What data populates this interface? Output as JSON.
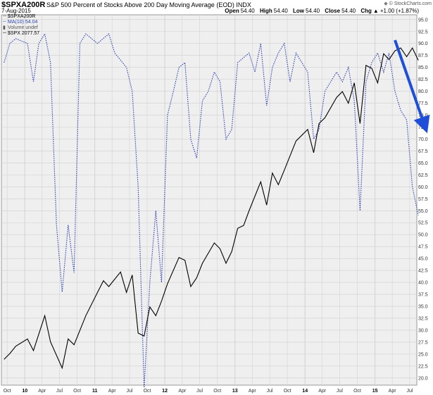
{
  "header": {
    "symbol": "$SPXA200R",
    "title": "S&P 500 Percent of Stocks Above 200 Day Moving Average (EOD) INDX",
    "date": "7-Aug-2015",
    "credit": "© StockCharts.com",
    "quote": {
      "open_label": "Open",
      "open_value": "54.40",
      "high_label": "High",
      "high_value": "54.40",
      "low_label": "Low",
      "low_value": "54.40",
      "close_label": "Close",
      "close_value": "54.40",
      "chg_label": "Chg",
      "chg_value": "+1.00 (+1.87%)",
      "chg_glyph": "▲"
    }
  },
  "legend": {
    "main": "$SPXA200R",
    "ma": "MA(10) 54.04",
    "volume": "Volume undef",
    "spx": "$SPX 2077.57"
  },
  "colors": {
    "ma_line": "#2a3fb0",
    "spx_line": "#000000",
    "arrow": "#1f4fd8",
    "grid": "#cfcfcf",
    "plot_bg": "#efefef"
  },
  "chart_data": {
    "type": "line",
    "x_range": [
      "2009-09-01",
      "2015-08-07"
    ],
    "ylim": [
      18.5,
      96
    ],
    "y_ticks": [
      "20.0",
      "22.5",
      "25.0",
      "27.5",
      "30.0",
      "32.5",
      "35.0",
      "37.5",
      "40.0",
      "42.5",
      "45.0",
      "47.5",
      "50.0",
      "52.5",
      "55.0",
      "57.5",
      "60.0",
      "62.5",
      "65.0",
      "67.5",
      "70.0",
      "72.5",
      "75.0",
      "77.5",
      "80.0",
      "82.5",
      "85.0",
      "87.5",
      "90.0",
      "92.5",
      "95.0"
    ],
    "x_ticks": [
      "Oct",
      "10",
      "Apr",
      "Jul",
      "Oct",
      "11",
      "Apr",
      "Jul",
      "Oct",
      "12",
      "Apr",
      "Jul",
      "Oct",
      "13",
      "Apr",
      "Jul",
      "Oct",
      "14",
      "Apr",
      "Jul",
      "Oct",
      "15",
      "Apr",
      "Jul"
    ],
    "year_ticks": [
      "10",
      "11",
      "12",
      "13",
      "14",
      "15"
    ],
    "grid": true,
    "series": [
      {
        "name": "MA(10) 54.04",
        "style": "dotted",
        "x": [
          "2009-09",
          "2009-10",
          "2009-11",
          "2010-01",
          "2010-02",
          "2010-03",
          "2010-04",
          "2010-05",
          "2010-06",
          "2010-07",
          "2010-08",
          "2010-09",
          "2010-10",
          "2010-11",
          "2011-01",
          "2011-03",
          "2011-04",
          "2011-06",
          "2011-07",
          "2011-08",
          "2011-09",
          "2011-10",
          "2011-11",
          "2011-12",
          "2012-01",
          "2012-02",
          "2012-03",
          "2012-04",
          "2012-05",
          "2012-06",
          "2012-07",
          "2012-08",
          "2012-09",
          "2012-10",
          "2012-11",
          "2012-12",
          "2013-01",
          "2013-03",
          "2013-04",
          "2013-05",
          "2013-06",
          "2013-07",
          "2013-08",
          "2013-09",
          "2013-10",
          "2013-11",
          "2014-01",
          "2014-02",
          "2014-03",
          "2014-04",
          "2014-06",
          "2014-07",
          "2014-08",
          "2014-09",
          "2014-10",
          "2014-11",
          "2014-12",
          "2015-01",
          "2015-02",
          "2015-03",
          "2015-04",
          "2015-05",
          "2015-06",
          "2015-07",
          "2015-08"
        ],
        "values": [
          86,
          90,
          91,
          90,
          82,
          90,
          92,
          86,
          52,
          38,
          52,
          42,
          90,
          92,
          90,
          92,
          88,
          85,
          80,
          60,
          18,
          40,
          55,
          40,
          75,
          80,
          85,
          86,
          70,
          66,
          78,
          80,
          84,
          82,
          70,
          72,
          86,
          88,
          84,
          90,
          77,
          85,
          88,
          90,
          82,
          88,
          84,
          70,
          72,
          80,
          84,
          82,
          85,
          78,
          55,
          82,
          86,
          88,
          84,
          88,
          80,
          76,
          74,
          60,
          54
        ]
      },
      {
        "name": "$SPX 2077.57",
        "style": "solid",
        "x": [
          "2009-09",
          "2009-10",
          "2009-11",
          "2010-01",
          "2010-02",
          "2010-04",
          "2010-05",
          "2010-07",
          "2010-08",
          "2010-09",
          "2010-11",
          "2011-01",
          "2011-02",
          "2011-03",
          "2011-05",
          "2011-06",
          "2011-07",
          "2011-08",
          "2011-09",
          "2011-10",
          "2011-11",
          "2011-12",
          "2012-01",
          "2012-03",
          "2012-04",
          "2012-05",
          "2012-06",
          "2012-07",
          "2012-09",
          "2012-10",
          "2012-11",
          "2012-12",
          "2013-01",
          "2013-02",
          "2013-03",
          "2013-05",
          "2013-06",
          "2013-07",
          "2013-08",
          "2013-09",
          "2013-11",
          "2014-01",
          "2014-02",
          "2014-03",
          "2014-04",
          "2014-06",
          "2014-07",
          "2014-08",
          "2014-09",
          "2014-10",
          "2014-11",
          "2014-12",
          "2015-01",
          "2015-02",
          "2015-03",
          "2015-04",
          "2015-05",
          "2015-06",
          "2015-07",
          "2015-08"
        ],
        "values": [
          1050,
          1070,
          1095,
          1120,
          1080,
          1200,
          1110,
          1020,
          1120,
          1100,
          1200,
          1280,
          1320,
          1300,
          1350,
          1280,
          1340,
          1140,
          1130,
          1230,
          1200,
          1250,
          1310,
          1400,
          1390,
          1300,
          1330,
          1380,
          1450,
          1430,
          1380,
          1420,
          1500,
          1510,
          1560,
          1660,
          1580,
          1690,
          1650,
          1700,
          1800,
          1840,
          1760,
          1860,
          1880,
          1950,
          1970,
          1930,
          2000,
          1860,
          2060,
          2050,
          2000,
          2100,
          2080,
          2110,
          2120,
          2090,
          2120,
          2077
        ]
      }
    ],
    "annotations": [
      "blue arrow pointing down-right toward the latest value"
    ]
  }
}
